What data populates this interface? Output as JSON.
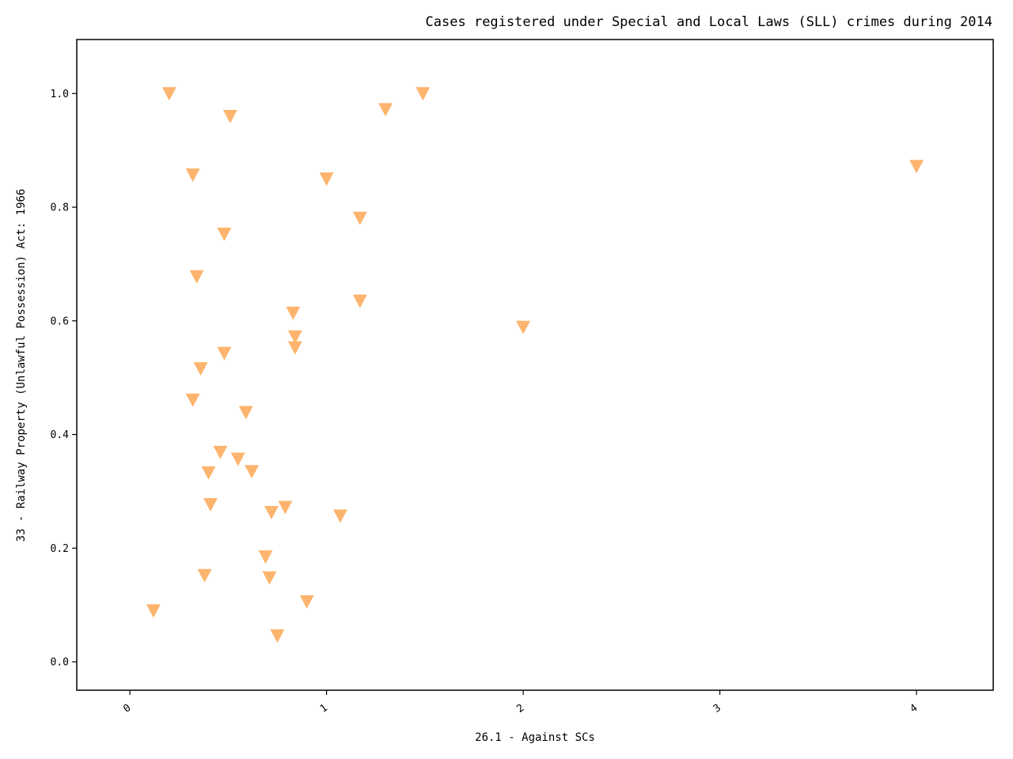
{
  "chart_data": {
    "type": "scatter",
    "title": "Cases registered under Special and Local Laws (SLL) crimes during 2014",
    "xlabel": "26.1 - Against SCs",
    "ylabel": "33 - Railway Property (Unlawful Possession) Act: 1966",
    "xlim": [
      -0.27,
      4.39
    ],
    "ylim": [
      -0.05,
      1.095
    ],
    "x_ticks": [
      0,
      1,
      2,
      3,
      4
    ],
    "x_tick_labels": [
      "0",
      "1",
      "2",
      "3",
      "4"
    ],
    "y_ticks": [
      0.0,
      0.2,
      0.4,
      0.6,
      0.8,
      1.0
    ],
    "y_tick_labels": [
      "0.0",
      "0.2",
      "0.4",
      "0.6",
      "0.8",
      "1.0"
    ],
    "grid": false,
    "marker": "triangle-down",
    "marker_color": "#FDB46E",
    "points": [
      {
        "x": 0.2,
        "y": 1.0
      },
      {
        "x": 0.51,
        "y": 0.96
      },
      {
        "x": 1.3,
        "y": 0.972
      },
      {
        "x": 1.49,
        "y": 1.0
      },
      {
        "x": 0.32,
        "y": 0.857
      },
      {
        "x": 1.0,
        "y": 0.85
      },
      {
        "x": 4.0,
        "y": 0.872
      },
      {
        "x": 1.17,
        "y": 0.781
      },
      {
        "x": 0.48,
        "y": 0.753
      },
      {
        "x": 0.34,
        "y": 0.678
      },
      {
        "x": 0.83,
        "y": 0.614
      },
      {
        "x": 1.17,
        "y": 0.635
      },
      {
        "x": 2.0,
        "y": 0.589
      },
      {
        "x": 0.84,
        "y": 0.572
      },
      {
        "x": 0.84,
        "y": 0.553
      },
      {
        "x": 0.48,
        "y": 0.543
      },
      {
        "x": 0.36,
        "y": 0.516
      },
      {
        "x": 0.32,
        "y": 0.461
      },
      {
        "x": 0.59,
        "y": 0.439
      },
      {
        "x": 0.46,
        "y": 0.369
      },
      {
        "x": 0.55,
        "y": 0.357
      },
      {
        "x": 0.4,
        "y": 0.333
      },
      {
        "x": 0.62,
        "y": 0.335
      },
      {
        "x": 0.41,
        "y": 0.277
      },
      {
        "x": 0.79,
        "y": 0.272
      },
      {
        "x": 0.72,
        "y": 0.263
      },
      {
        "x": 1.07,
        "y": 0.257
      },
      {
        "x": 0.69,
        "y": 0.185
      },
      {
        "x": 0.38,
        "y": 0.152
      },
      {
        "x": 0.71,
        "y": 0.148
      },
      {
        "x": 0.9,
        "y": 0.106
      },
      {
        "x": 0.12,
        "y": 0.09
      },
      {
        "x": 0.75,
        "y": 0.046
      }
    ]
  }
}
